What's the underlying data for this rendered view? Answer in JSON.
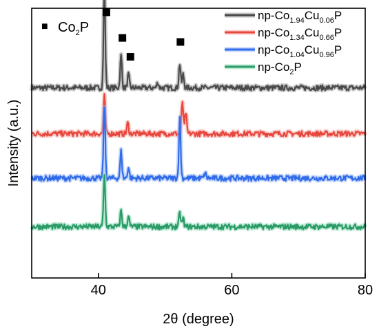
{
  "chart_data": {
    "type": "line",
    "title": "",
    "xlabel": "2θ (degree)",
    "ylabel": "Intensity (a.u.)",
    "xlim": [
      30,
      80
    ],
    "xticks": [
      40,
      60,
      80
    ],
    "xtick_labels": [
      "40",
      "60",
      "80"
    ],
    "ylim": [
      0,
      1
    ],
    "y_ticks_shown": false,
    "grid": false,
    "legend_placement": "top-right",
    "marker_legend": {
      "symbol": "■",
      "label_main": "Co",
      "label_sub": "2",
      "label_tail": "P"
    },
    "series": [
      {
        "name": "np-Co1.94Cu0.06P",
        "legend": {
          "prefix": "np-Co",
          "sub1": "1.94",
          "mid": "Cu",
          "sub2": "0.06",
          "suffix": "P"
        },
        "color": "#4a4a4a",
        "glow": "#9a9a9a",
        "baseline": 0.705,
        "peaks": [
          [
            40.9,
            0.37
          ],
          [
            43.4,
            0.12
          ],
          [
            44.5,
            0.05
          ],
          [
            48.9,
            0.02
          ],
          [
            52.2,
            0.09
          ],
          [
            52.7,
            0.05
          ]
        ]
      },
      {
        "name": "np-Co1.34Cu0.66P",
        "legend": {
          "prefix": "np-Co",
          "sub1": "1.34",
          "mid": "Cu",
          "sub2": "0.66",
          "suffix": "P"
        },
        "color": "#e8473e",
        "glow": "#f3a59e",
        "baseline": 0.535,
        "peaks": [
          [
            40.9,
            0.14
          ],
          [
            44.4,
            0.04
          ],
          [
            52.6,
            0.12
          ],
          [
            53.1,
            0.08
          ]
        ]
      },
      {
        "name": "np-Co1.04Cu0.96P",
        "legend": {
          "prefix": "np-Co",
          "sub1": "1.04",
          "mid": "Cu",
          "sub2": "0.96",
          "suffix": "P"
        },
        "color": "#2f6bea",
        "glow": "#94b4f5",
        "baseline": 0.37,
        "peaks": [
          [
            40.9,
            0.27
          ],
          [
            43.4,
            0.1
          ],
          [
            44.5,
            0.04
          ],
          [
            52.2,
            0.22
          ],
          [
            56.0,
            0.02
          ]
        ]
      },
      {
        "name": "np-Co2P",
        "legend": {
          "prefix": "np-Co",
          "sub1": "2",
          "mid": "",
          "sub2": "",
          "suffix": "P"
        },
        "color": "#2a9a66",
        "glow": "#86d8b2",
        "baseline": 0.19,
        "peaks": [
          [
            40.9,
            0.19
          ],
          [
            43.4,
            0.06
          ],
          [
            44.5,
            0.04
          ],
          [
            52.2,
            0.05
          ],
          [
            52.7,
            0.03
          ]
        ]
      }
    ],
    "peak_markers": [
      {
        "x": 41.2,
        "y": 0.985
      },
      {
        "x": 43.6,
        "y": 0.89
      },
      {
        "x": 44.8,
        "y": 0.82
      },
      {
        "x": 52.3,
        "y": 0.875
      }
    ]
  }
}
